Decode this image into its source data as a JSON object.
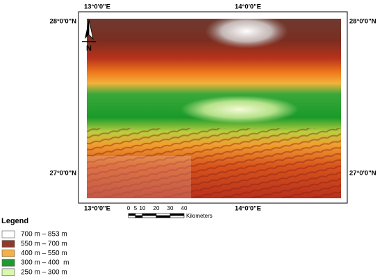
{
  "map": {
    "top_labels": [
      "13°0'0\"E",
      "14°0'0\"E"
    ],
    "bottom_labels": [
      "13°0'0\"E",
      "14°0'0\"E"
    ],
    "left_labels": [
      "28°0'0\"N",
      "27°0'0\"N"
    ],
    "right_labels": [
      "28°0'0\"N",
      "27°0'0\"N"
    ],
    "north": "N",
    "scale_bar": {
      "ticks": [
        0,
        5,
        10,
        20,
        30,
        40
      ],
      "unit": "Kilometers"
    },
    "legend": {
      "title": "Legend",
      "items": [
        {
          "label": "700 m – 853 m",
          "color": "#ffffff"
        },
        {
          "label": "550 m – 700 m",
          "color": "#8c3a2c"
        },
        {
          "label": "400 m – 550 m",
          "color": "#f4b04a"
        },
        {
          "label": "300 m – 400  m",
          "color": "#1f9a2e"
        },
        {
          "label": "250 m – 300 m",
          "color": "#d9f7ad"
        }
      ]
    }
  }
}
